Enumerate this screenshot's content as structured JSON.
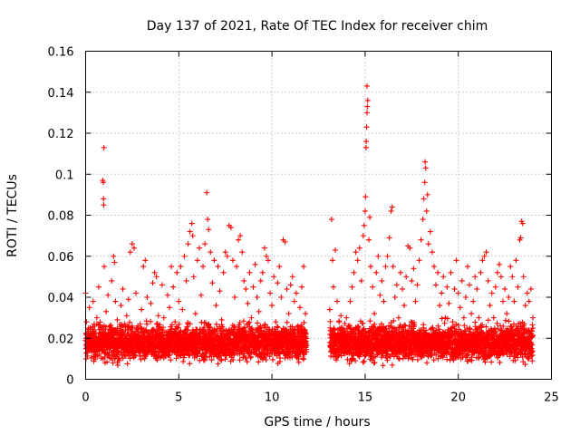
{
  "chart_data": {
    "type": "scatter",
    "title": "Day 137 of 2021, Rate Of TEC Index for receiver chim",
    "xlabel": "GPS time / hours",
    "ylabel": "ROTI / TECUs",
    "xlim": [
      0,
      25
    ],
    "ylim": [
      0,
      0.16
    ],
    "x_ticks": [
      0,
      5,
      10,
      15,
      20,
      25
    ],
    "x_tick_labels": [
      "0",
      "5",
      "10",
      "15",
      "20",
      "25"
    ],
    "y_ticks": [
      0,
      0.02,
      0.04,
      0.06,
      0.08,
      0.1,
      0.12,
      0.14,
      0.16
    ],
    "y_tick_labels": [
      "0",
      "0.02",
      "0.04",
      "0.06",
      "0.08",
      "0.1",
      "0.12",
      "0.14",
      "0.16"
    ],
    "grid": true,
    "marker": "plus",
    "color": "#ff0000",
    "data_gap_hours": [
      11.9,
      13.1
    ],
    "series": [
      {
        "points": [
          [
            0.0,
            0.042
          ],
          [
            0.05,
            0.028
          ],
          [
            0.1,
            0.018
          ],
          [
            0.2,
            0.035
          ],
          [
            0.3,
            0.022
          ],
          [
            0.4,
            0.038
          ],
          [
            0.5,
            0.015
          ],
          [
            0.6,
            0.03
          ],
          [
            0.7,
            0.045
          ],
          [
            0.8,
            0.025
          ],
          [
            0.9,
            0.019
          ],
          [
            0.92,
            0.097
          ],
          [
            0.95,
            0.096
          ],
          [
            0.98,
            0.113
          ],
          [
            0.96,
            0.088
          ],
          [
            0.97,
            0.085
          ],
          [
            1.0,
            0.055
          ],
          [
            1.1,
            0.033
          ],
          [
            1.2,
            0.041
          ],
          [
            1.3,
            0.024
          ],
          [
            1.4,
            0.048
          ],
          [
            1.5,
            0.06
          ],
          [
            1.55,
            0.057
          ],
          [
            1.6,
            0.038
          ],
          [
            1.7,
            0.029
          ],
          [
            1.8,
            0.02
          ],
          [
            1.9,
            0.036
          ],
          [
            2.0,
            0.044
          ],
          [
            2.1,
            0.027
          ],
          [
            2.2,
            0.031
          ],
          [
            2.3,
            0.039
          ],
          [
            2.4,
            0.062
          ],
          [
            2.5,
            0.066
          ],
          [
            2.6,
            0.064
          ],
          [
            2.7,
            0.042
          ],
          [
            2.8,
            0.026
          ],
          [
            2.9,
            0.018
          ],
          [
            3.0,
            0.034
          ],
          [
            3.1,
            0.055
          ],
          [
            3.2,
            0.058
          ],
          [
            3.3,
            0.04
          ],
          [
            3.4,
            0.023
          ],
          [
            3.5,
            0.037
          ],
          [
            3.6,
            0.047
          ],
          [
            3.7,
            0.052
          ],
          [
            3.8,
            0.05
          ],
          [
            3.9,
            0.031
          ],
          [
            4.0,
            0.024
          ],
          [
            4.1,
            0.046
          ],
          [
            4.2,
            0.03
          ],
          [
            4.3,
            0.019
          ],
          [
            4.4,
            0.041
          ],
          [
            4.5,
            0.035
          ],
          [
            4.6,
            0.055
          ],
          [
            4.7,
            0.045
          ],
          [
            4.8,
            0.028
          ],
          [
            4.9,
            0.052
          ],
          [
            5.0,
            0.038
          ],
          [
            5.1,
            0.055
          ],
          [
            5.2,
            0.034
          ],
          [
            5.3,
            0.06
          ],
          [
            5.4,
            0.048
          ],
          [
            5.5,
            0.066
          ],
          [
            5.6,
            0.072
          ],
          [
            5.7,
            0.076
          ],
          [
            5.75,
            0.07
          ],
          [
            5.8,
            0.05
          ],
          [
            5.9,
            0.032
          ],
          [
            6.0,
            0.058
          ],
          [
            6.1,
            0.064
          ],
          [
            6.2,
            0.041
          ],
          [
            6.3,
            0.055
          ],
          [
            6.4,
            0.066
          ],
          [
            6.5,
            0.091
          ],
          [
            6.55,
            0.078
          ],
          [
            6.6,
            0.073
          ],
          [
            6.7,
            0.062
          ],
          [
            6.8,
            0.047
          ],
          [
            6.9,
            0.058
          ],
          [
            7.0,
            0.036
          ],
          [
            7.1,
            0.055
          ],
          [
            7.2,
            0.043
          ],
          [
            7.3,
            0.029
          ],
          [
            7.4,
            0.052
          ],
          [
            7.5,
            0.062
          ],
          [
            7.6,
            0.06
          ],
          [
            7.7,
            0.075
          ],
          [
            7.8,
            0.074
          ],
          [
            7.9,
            0.058
          ],
          [
            8.0,
            0.04
          ],
          [
            8.1,
            0.055
          ],
          [
            8.2,
            0.068
          ],
          [
            8.3,
            0.07
          ],
          [
            8.4,
            0.062
          ],
          [
            8.5,
            0.048
          ],
          [
            8.6,
            0.044
          ],
          [
            8.7,
            0.037
          ],
          [
            8.8,
            0.052
          ],
          [
            8.9,
            0.03
          ],
          [
            9.0,
            0.045
          ],
          [
            9.1,
            0.056
          ],
          [
            9.2,
            0.04
          ],
          [
            9.3,
            0.033
          ],
          [
            9.4,
            0.048
          ],
          [
            9.5,
            0.052
          ],
          [
            9.6,
            0.064
          ],
          [
            9.7,
            0.06
          ],
          [
            9.8,
            0.058
          ],
          [
            9.9,
            0.042
          ],
          [
            10.0,
            0.036
          ],
          [
            10.1,
            0.05
          ],
          [
            10.2,
            0.028
          ],
          [
            10.3,
            0.047
          ],
          [
            10.4,
            0.055
          ],
          [
            10.5,
            0.04
          ],
          [
            10.6,
            0.068
          ],
          [
            10.7,
            0.067
          ],
          [
            10.8,
            0.044
          ],
          [
            10.9,
            0.032
          ],
          [
            11.0,
            0.046
          ],
          [
            11.1,
            0.05
          ],
          [
            11.2,
            0.038
          ],
          [
            11.3,
            0.042
          ],
          [
            11.4,
            0.026
          ],
          [
            11.5,
            0.035
          ],
          [
            11.6,
            0.045
          ],
          [
            11.7,
            0.055
          ],
          [
            11.8,
            0.032
          ],
          [
            13.1,
            0.034
          ],
          [
            13.2,
            0.078
          ],
          [
            13.25,
            0.058
          ],
          [
            13.3,
            0.045
          ],
          [
            13.4,
            0.063
          ],
          [
            13.5,
            0.038
          ],
          [
            13.6,
            0.028
          ],
          [
            13.7,
            0.031
          ],
          [
            13.8,
            0.025
          ],
          [
            13.9,
            0.02
          ],
          [
            14.0,
            0.03
          ],
          [
            14.1,
            0.026
          ],
          [
            14.2,
            0.038
          ],
          [
            14.3,
            0.045
          ],
          [
            14.4,
            0.052
          ],
          [
            14.5,
            0.062
          ],
          [
            14.6,
            0.058
          ],
          [
            14.7,
            0.064
          ],
          [
            14.8,
            0.048
          ],
          [
            14.9,
            0.07
          ],
          [
            14.95,
            0.075
          ],
          [
            15.0,
            0.082
          ],
          [
            15.02,
            0.089
          ],
          [
            15.05,
            0.113
          ],
          [
            15.06,
            0.116
          ],
          [
            15.08,
            0.123
          ],
          [
            15.1,
            0.13
          ],
          [
            15.12,
            0.133
          ],
          [
            15.14,
            0.136
          ],
          [
            15.1,
            0.143
          ],
          [
            15.2,
            0.068
          ],
          [
            15.25,
            0.079
          ],
          [
            15.3,
            0.055
          ],
          [
            15.4,
            0.045
          ],
          [
            15.5,
            0.032
          ],
          [
            15.6,
            0.052
          ],
          [
            15.7,
            0.06
          ],
          [
            15.8,
            0.041
          ],
          [
            15.9,
            0.048
          ],
          [
            16.0,
            0.038
          ],
          [
            16.1,
            0.055
          ],
          [
            16.2,
            0.06
          ],
          [
            16.3,
            0.069
          ],
          [
            16.4,
            0.082
          ],
          [
            16.45,
            0.084
          ],
          [
            16.5,
            0.055
          ],
          [
            16.6,
            0.04
          ],
          [
            16.7,
            0.046
          ],
          [
            16.8,
            0.03
          ],
          [
            16.9,
            0.052
          ],
          [
            17.0,
            0.044
          ],
          [
            17.1,
            0.036
          ],
          [
            17.2,
            0.05
          ],
          [
            17.3,
            0.065
          ],
          [
            17.4,
            0.064
          ],
          [
            17.5,
            0.048
          ],
          [
            17.6,
            0.054
          ],
          [
            17.7,
            0.038
          ],
          [
            17.8,
            0.046
          ],
          [
            17.9,
            0.058
          ],
          [
            18.0,
            0.068
          ],
          [
            18.1,
            0.078
          ],
          [
            18.15,
            0.088
          ],
          [
            18.2,
            0.096
          ],
          [
            18.22,
            0.106
          ],
          [
            18.25,
            0.103
          ],
          [
            18.3,
            0.082
          ],
          [
            18.35,
            0.09
          ],
          [
            18.4,
            0.066
          ],
          [
            18.5,
            0.072
          ],
          [
            18.6,
            0.062
          ],
          [
            18.7,
            0.055
          ],
          [
            18.8,
            0.046
          ],
          [
            18.9,
            0.052
          ],
          [
            19.0,
            0.036
          ],
          [
            19.1,
            0.042
          ],
          [
            19.2,
            0.05
          ],
          [
            19.3,
            0.03
          ],
          [
            19.4,
            0.045
          ],
          [
            19.5,
            0.037
          ],
          [
            19.6,
            0.052
          ],
          [
            19.7,
            0.028
          ],
          [
            19.8,
            0.044
          ],
          [
            19.9,
            0.058
          ],
          [
            20.0,
            0.042
          ],
          [
            20.1,
            0.035
          ],
          [
            20.2,
            0.048
          ],
          [
            20.3,
            0.03
          ],
          [
            20.4,
            0.04
          ],
          [
            20.5,
            0.055
          ],
          [
            20.6,
            0.046
          ],
          [
            20.7,
            0.032
          ],
          [
            20.8,
            0.038
          ],
          [
            20.9,
            0.05
          ],
          [
            21.0,
            0.044
          ],
          [
            21.1,
            0.03
          ],
          [
            21.2,
            0.052
          ],
          [
            21.3,
            0.058
          ],
          [
            21.4,
            0.06
          ],
          [
            21.5,
            0.062
          ],
          [
            21.6,
            0.048
          ],
          [
            21.7,
            0.036
          ],
          [
            21.8,
            0.042
          ],
          [
            21.9,
            0.03
          ],
          [
            22.0,
            0.045
          ],
          [
            22.1,
            0.052
          ],
          [
            22.2,
            0.056
          ],
          [
            22.3,
            0.05
          ],
          [
            22.4,
            0.038
          ],
          [
            22.5,
            0.044
          ],
          [
            22.6,
            0.032
          ],
          [
            22.7,
            0.04
          ],
          [
            22.8,
            0.055
          ],
          [
            22.9,
            0.05
          ],
          [
            23.0,
            0.038
          ],
          [
            23.1,
            0.058
          ],
          [
            23.2,
            0.045
          ],
          [
            23.3,
            0.068
          ],
          [
            23.35,
            0.069
          ],
          [
            23.4,
            0.077
          ],
          [
            23.45,
            0.076
          ],
          [
            23.5,
            0.05
          ],
          [
            23.6,
            0.036
          ],
          [
            23.7,
            0.042
          ],
          [
            23.8,
            0.038
          ],
          [
            23.9,
            0.044
          ],
          [
            24.0,
            0.03
          ]
        ],
        "band": {
          "description_free": true,
          "segments": [
            [
              0.0,
              11.85
            ],
            [
              13.1,
              24.0
            ]
          ],
          "y_center": 0.018,
          "y_spread": 0.012,
          "step_hours": 0.01
        }
      }
    ]
  }
}
